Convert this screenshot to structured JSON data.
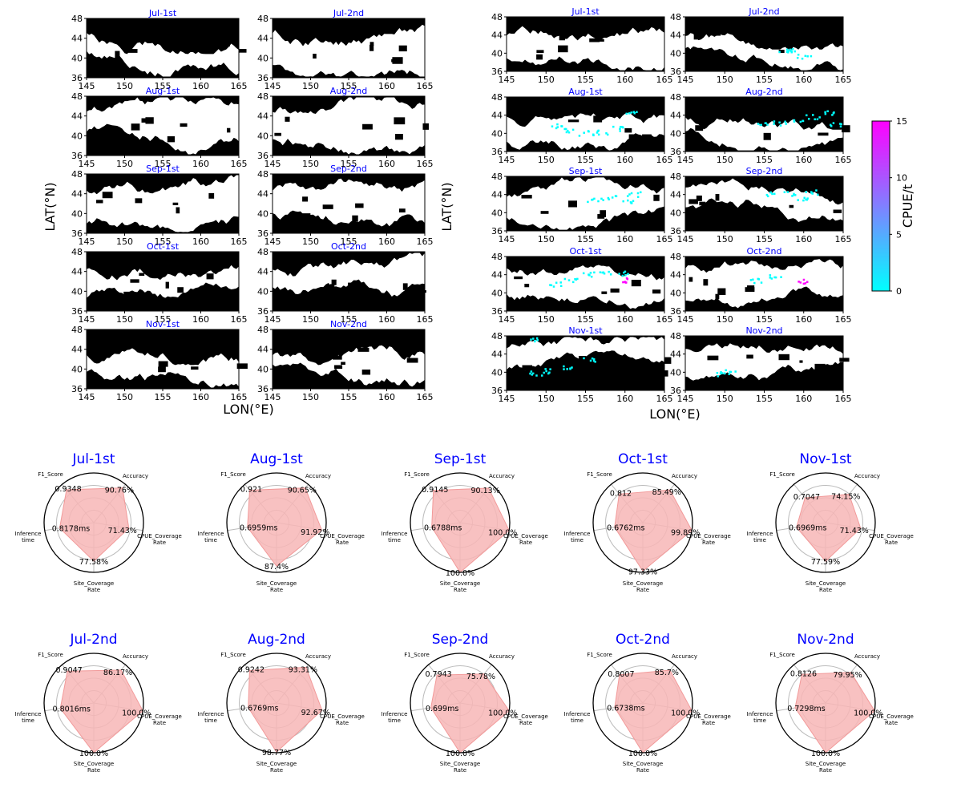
{
  "map_panels": {
    "left_block": {
      "xlabel": "LON(°E)",
      "ylabel": "LAT(°N)",
      "panels": [
        {
          "title": "Jul-1st",
          "seed": 11
        },
        {
          "title": "Jul-2nd",
          "seed": 12
        },
        {
          "title": "Aug-1st",
          "seed": 13
        },
        {
          "title": "Aug-2nd",
          "seed": 14
        },
        {
          "title": "Sep-1st",
          "seed": 15
        },
        {
          "title": "Sep-2nd",
          "seed": 16
        },
        {
          "title": "Oct-1st",
          "seed": 17
        },
        {
          "title": "Oct-2nd",
          "seed": 18
        },
        {
          "title": "Nov-1st",
          "seed": 19
        },
        {
          "title": "Nov-2nd",
          "seed": 20
        }
      ]
    },
    "right_block": {
      "xlabel": "LON(°E)",
      "ylabel": "LAT(°N)",
      "panels": [
        {
          "title": "Jul-1st",
          "seed": 31,
          "cpue": []
        },
        {
          "title": "Jul-2nd",
          "seed": 32,
          "cpue": [
            [
              157.5,
              40.8,
              2
            ],
            [
              158.5,
              40.6,
              2
            ],
            [
              160,
              39.4,
              1
            ]
          ]
        },
        {
          "title": "Aug-1st",
          "seed": 33,
          "cpue": [
            [
              151,
              41.8,
              2
            ],
            [
              153,
              40.8,
              3
            ],
            [
              155,
              40.2,
              2
            ],
            [
              157,
              40.4,
              2
            ],
            [
              159,
              41.2,
              3
            ],
            [
              160.5,
              44.4,
              1
            ]
          ]
        },
        {
          "title": "Aug-2nd",
          "seed": 34,
          "cpue": [
            [
              155,
              42,
              2
            ],
            [
              157,
              42.4,
              3
            ],
            [
              159,
              43.2,
              3
            ],
            [
              161,
              43.8,
              2
            ],
            [
              163,
              44.6,
              2
            ],
            [
              164,
              42.2,
              1
            ]
          ]
        },
        {
          "title": "Sep-1st",
          "seed": 35,
          "cpue": [
            [
              156,
              43,
              3
            ],
            [
              158,
              43.4,
              3
            ],
            [
              160,
              42.6,
              2
            ],
            [
              161,
              44.2,
              1
            ]
          ]
        },
        {
          "title": "Sep-2nd",
          "seed": 36,
          "cpue": [
            [
              156,
              44.2,
              2
            ],
            [
              158,
              44.4,
              3
            ],
            [
              159.5,
              43.4,
              2
            ],
            [
              161,
              44.6,
              2
            ]
          ]
        },
        {
          "title": "Oct-1st",
          "seed": 37,
          "cpue": [
            [
              153,
              43,
              2
            ],
            [
              155.5,
              44.2,
              3
            ],
            [
              157.5,
              44.6,
              3
            ],
            [
              159.5,
              44.4,
              2
            ],
            [
              160,
              43,
              15
            ],
            [
              151,
              42,
              1
            ]
          ]
        },
        {
          "title": "Oct-2nd",
          "seed": 38,
          "cpue": [
            [
              156.5,
              43.8,
              3
            ],
            [
              160,
              42.6,
              15
            ],
            [
              154,
              42.8,
              1
            ]
          ]
        },
        {
          "title": "Nov-1st",
          "seed": 39,
          "cpue": [
            [
              148.5,
              40,
              3
            ],
            [
              150,
              40.4,
              2
            ],
            [
              152.5,
              41.4,
              2
            ],
            [
              155.5,
              42.8,
              2
            ],
            [
              148,
              47.2,
              1
            ]
          ]
        },
        {
          "title": "Nov-2nd",
          "seed": 40,
          "cpue": [
            [
              149.5,
              39.8,
              3
            ],
            [
              150.5,
              40.2,
              2
            ]
          ]
        }
      ]
    },
    "xlim": [
      145,
      165
    ],
    "ylim": [
      36,
      48
    ],
    "xticks": [
      145,
      150,
      155,
      160,
      165
    ],
    "yticks": [
      36,
      40,
      44,
      48
    ],
    "colorbar": {
      "label": "CPUE/t",
      "min": 0,
      "max": 15,
      "ticks": [
        0,
        5,
        10,
        15
      ],
      "color_low": "#00ffff",
      "color_high": "#ff00ff"
    }
  },
  "chart_data": {
    "type": "radar",
    "axes": [
      "F1_Score",
      "Accuracy",
      "CPUE_Coverage Rate",
      "Site_Coverage Rate",
      "Inference time"
    ],
    "fill_color": "#f7b6b6",
    "title_color": "#0000ff",
    "radars": [
      {
        "title": "Jul-1st",
        "values": [
          0.9348,
          90.76,
          71.43,
          77.58,
          0.8178
        ],
        "labels": [
          "0.9348",
          "90.76%",
          "71.43%",
          "77.58%",
          "0.8178ms"
        ]
      },
      {
        "title": "Aug-1st",
        "values": [
          0.921,
          90.65,
          91.92,
          87.4,
          0.6959
        ],
        "labels": [
          "0.921",
          "90.65%",
          "91.92%",
          "87.4%",
          "0.6959ms"
        ]
      },
      {
        "title": "Sep-1st",
        "values": [
          0.9145,
          90.13,
          100.0,
          100.0,
          0.6788
        ],
        "labels": [
          "0.9145",
          "90.13%",
          "100.0%",
          "100.0%",
          "0.6788ms"
        ]
      },
      {
        "title": "Oct-1st",
        "values": [
          0.812,
          85.49,
          99.89,
          97.33,
          0.6762
        ],
        "labels": [
          "0.812",
          "85.49%",
          "99.89%",
          "97.33%",
          "0.6762ms"
        ]
      },
      {
        "title": "Nov-1st",
        "values": [
          0.7047,
          74.15,
          71.43,
          77.59,
          0.6969
        ],
        "labels": [
          "0.7047",
          "74.15%",
          "71.43%",
          "77.59%",
          "0.6969ms"
        ]
      },
      {
        "title": "Jul-2nd",
        "values": [
          0.9047,
          86.17,
          100.0,
          100.0,
          0.8016
        ],
        "labels": [
          "0.9047",
          "86.17%",
          "100.0%",
          "100.0%",
          "0.8016ms"
        ]
      },
      {
        "title": "Aug-2nd",
        "values": [
          0.9242,
          93.31,
          92.67,
          98.77,
          0.6769
        ],
        "labels": [
          "0.9242",
          "93.31%",
          "92.67%",
          "98.77%",
          "0.6769ms"
        ]
      },
      {
        "title": "Sep-2nd",
        "values": [
          0.7943,
          75.78,
          100.0,
          100.0,
          0.699
        ],
        "labels": [
          "0.7943",
          "75.78%",
          "100.0%",
          "100.0%",
          "0.699ms"
        ]
      },
      {
        "title": "Oct-2nd",
        "values": [
          0.8007,
          85.7,
          100.0,
          100.0,
          0.6738
        ],
        "labels": [
          "0.8007",
          "85.7%",
          "100.0%",
          "100.0%",
          "0.6738ms"
        ]
      },
      {
        "title": "Nov-2nd",
        "values": [
          0.8126,
          79.95,
          100.0,
          100.0,
          0.7298
        ],
        "labels": [
          "0.8126",
          "79.95%",
          "100.0%",
          "100.0%",
          "0.7298ms"
        ]
      }
    ]
  }
}
